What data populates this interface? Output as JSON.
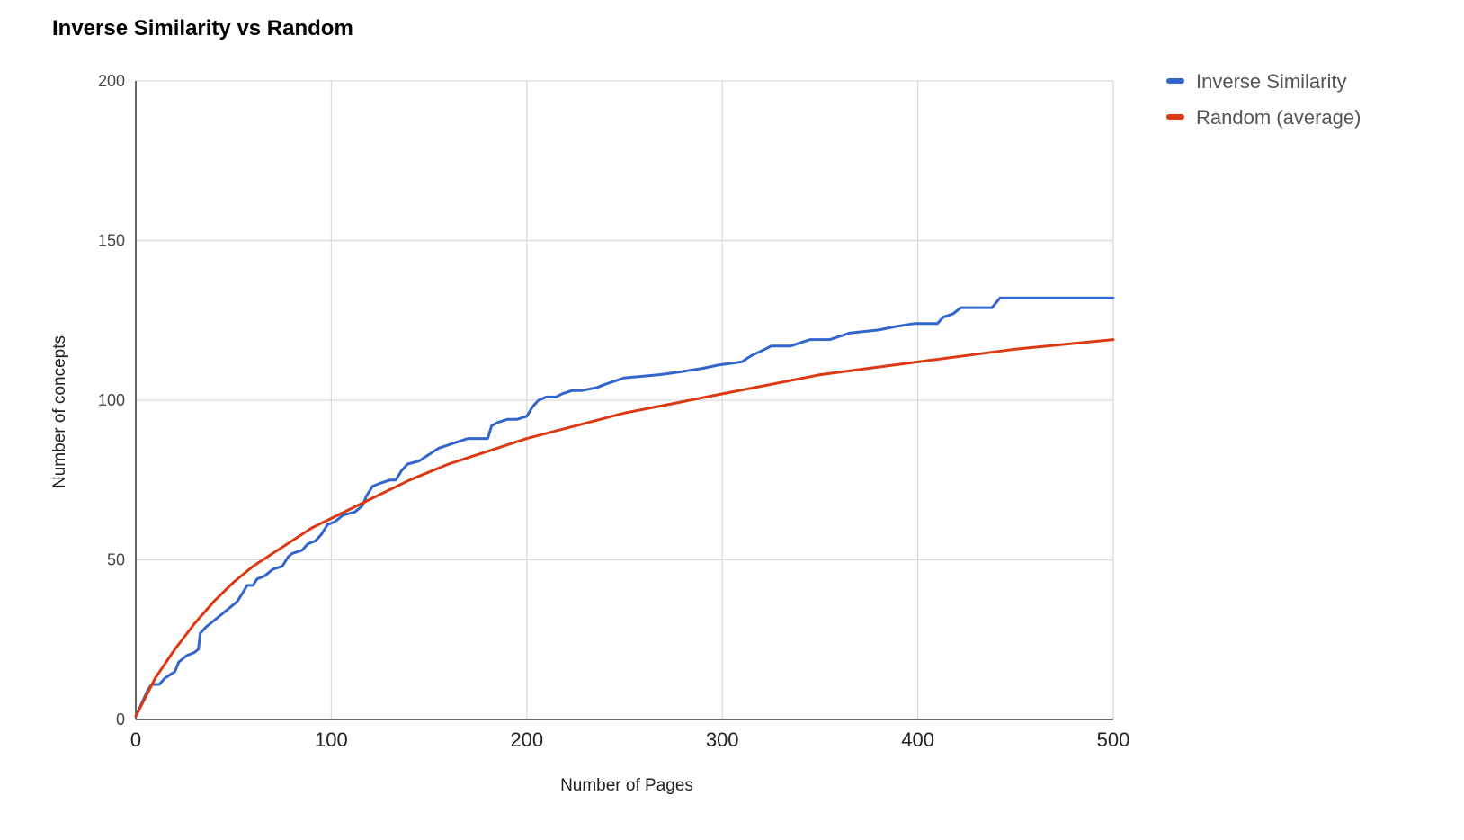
{
  "chart_data": {
    "type": "line",
    "title": "Inverse Similarity vs Random",
    "xlabel": "Number of Pages",
    "ylabel": "Number of concepts",
    "xlim": [
      0,
      500
    ],
    "ylim": [
      0,
      200
    ],
    "x_ticks": [
      0,
      100,
      200,
      300,
      400,
      500
    ],
    "y_ticks": [
      0,
      50,
      100,
      150,
      200
    ],
    "x_tick_labels": [
      "0",
      "100",
      "200",
      "300",
      "400",
      "500"
    ],
    "y_tick_labels": [
      "0",
      "50",
      "100",
      "150",
      "200"
    ],
    "grid": true,
    "legend_position": "right",
    "series": [
      {
        "name": "Inverse Similarity",
        "color": "#3366cc",
        "points": [
          [
            0,
            1
          ],
          [
            3,
            5
          ],
          [
            6,
            9
          ],
          [
            8,
            11
          ],
          [
            12,
            11
          ],
          [
            15,
            13
          ],
          [
            20,
            15
          ],
          [
            22,
            18
          ],
          [
            26,
            20
          ],
          [
            30,
            21
          ],
          [
            32,
            22
          ],
          [
            33,
            27
          ],
          [
            36,
            29
          ],
          [
            40,
            31
          ],
          [
            44,
            33
          ],
          [
            48,
            35
          ],
          [
            52,
            37
          ],
          [
            55,
            40
          ],
          [
            57,
            42
          ],
          [
            60,
            42
          ],
          [
            62,
            44
          ],
          [
            66,
            45
          ],
          [
            70,
            47
          ],
          [
            75,
            48
          ],
          [
            78,
            51
          ],
          [
            80,
            52
          ],
          [
            85,
            53
          ],
          [
            88,
            55
          ],
          [
            92,
            56
          ],
          [
            95,
            58
          ],
          [
            98,
            61
          ],
          [
            102,
            62
          ],
          [
            106,
            64
          ],
          [
            112,
            65
          ],
          [
            116,
            67
          ],
          [
            118,
            70
          ],
          [
            121,
            73
          ],
          [
            125,
            74
          ],
          [
            130,
            75
          ],
          [
            133,
            75
          ],
          [
            136,
            78
          ],
          [
            139,
            80
          ],
          [
            145,
            81
          ],
          [
            150,
            83
          ],
          [
            155,
            85
          ],
          [
            160,
            86
          ],
          [
            165,
            87
          ],
          [
            170,
            88
          ],
          [
            175,
            88
          ],
          [
            180,
            88
          ],
          [
            182,
            92
          ],
          [
            185,
            93
          ],
          [
            190,
            94
          ],
          [
            195,
            94
          ],
          [
            200,
            95
          ],
          [
            203,
            98
          ],
          [
            206,
            100
          ],
          [
            210,
            101
          ],
          [
            215,
            101
          ],
          [
            218,
            102
          ],
          [
            223,
            103
          ],
          [
            228,
            103
          ],
          [
            236,
            104
          ],
          [
            240,
            105
          ],
          [
            245,
            106
          ],
          [
            250,
            107
          ],
          [
            268,
            108
          ],
          [
            280,
            109
          ],
          [
            290,
            110
          ],
          [
            298,
            111
          ],
          [
            310,
            112
          ],
          [
            315,
            114
          ],
          [
            322,
            116
          ],
          [
            325,
            117
          ],
          [
            335,
            117
          ],
          [
            340,
            118
          ],
          [
            345,
            119
          ],
          [
            355,
            119
          ],
          [
            360,
            120
          ],
          [
            365,
            121
          ],
          [
            380,
            122
          ],
          [
            388,
            123
          ],
          [
            398,
            124
          ],
          [
            410,
            124
          ],
          [
            413,
            126
          ],
          [
            418,
            127
          ],
          [
            422,
            129
          ],
          [
            438,
            129
          ],
          [
            442,
            132
          ],
          [
            500,
            132
          ]
        ]
      },
      {
        "name": "Random (average)",
        "color": "#dc3912",
        "points": [
          [
            0,
            1
          ],
          [
            5,
            7
          ],
          [
            10,
            13
          ],
          [
            20,
            22
          ],
          [
            30,
            30
          ],
          [
            40,
            37
          ],
          [
            50,
            43
          ],
          [
            60,
            48
          ],
          [
            70,
            52
          ],
          [
            80,
            56
          ],
          [
            90,
            60
          ],
          [
            100,
            63
          ],
          [
            120,
            69
          ],
          [
            140,
            75
          ],
          [
            160,
            80
          ],
          [
            180,
            84
          ],
          [
            200,
            88
          ],
          [
            225,
            92
          ],
          [
            250,
            96
          ],
          [
            275,
            99
          ],
          [
            300,
            102
          ],
          [
            325,
            105
          ],
          [
            350,
            108
          ],
          [
            375,
            110
          ],
          [
            400,
            112
          ],
          [
            425,
            114
          ],
          [
            450,
            116
          ],
          [
            475,
            117.5
          ],
          [
            500,
            119
          ]
        ]
      }
    ]
  }
}
